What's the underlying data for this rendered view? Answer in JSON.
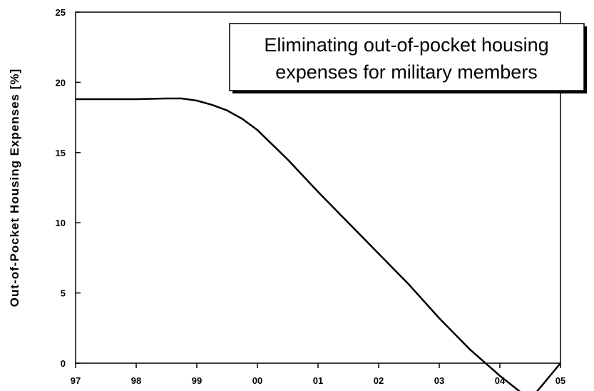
{
  "chart_data": {
    "type": "line",
    "title_lines": [
      "Eliminating out-of-pocket housing",
      "expenses for military members"
    ],
    "xlabel": "",
    "ylabel": "Out-of-Pocket Housing Expenses [%]",
    "x_tick_labels": [
      "97",
      "98",
      "99",
      "00",
      "01",
      "02",
      "03",
      "04",
      "05"
    ],
    "y_ticks": [
      0,
      5,
      10,
      15,
      20,
      25
    ],
    "xlim": [
      0,
      8
    ],
    "ylim": [
      0,
      25
    ],
    "grid": false,
    "line_color": "#000000",
    "series": [
      {
        "x": [
          0,
          0.5,
          1.0,
          1.5,
          1.75,
          2.0,
          2.25,
          2.5,
          2.75,
          3.0,
          3.5,
          4.0,
          4.5,
          5.0,
          5.5,
          6.0,
          6.5,
          7.0,
          7.5,
          8.0
        ],
        "values": [
          18.8,
          18.8,
          18.8,
          18.85,
          18.85,
          18.7,
          18.4,
          18.0,
          17.4,
          16.6,
          14.5,
          12.2,
          10.0,
          7.8,
          5.6,
          3.2,
          1.0,
          -0.9,
          -2.6,
          0.0
        ]
      }
    ]
  }
}
